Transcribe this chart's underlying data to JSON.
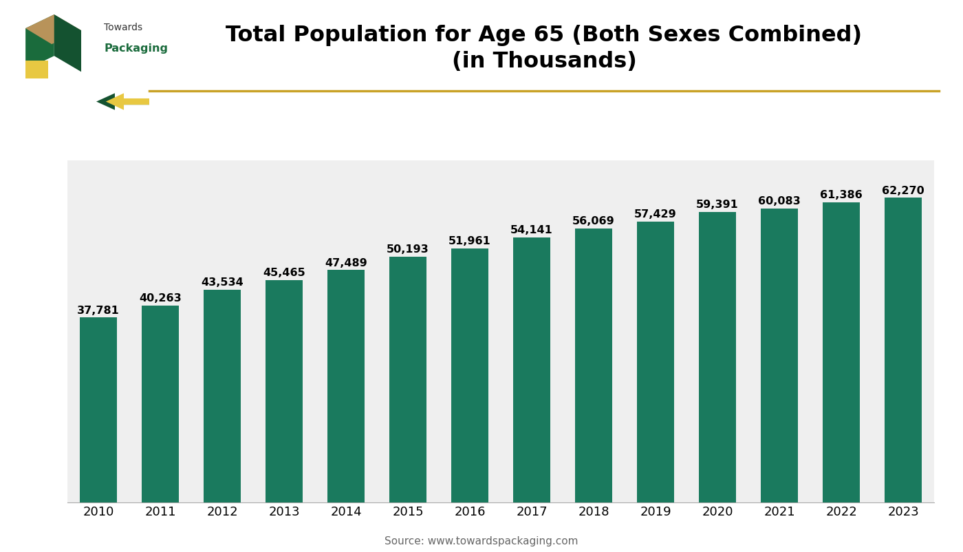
{
  "years": [
    2010,
    2011,
    2012,
    2013,
    2014,
    2015,
    2016,
    2017,
    2018,
    2019,
    2020,
    2021,
    2022,
    2023
  ],
  "values": [
    37781,
    40263,
    43534,
    45465,
    47489,
    50193,
    51961,
    54141,
    56069,
    57429,
    59391,
    60083,
    61386,
    62270
  ],
  "bar_color": "#1a7a5e",
  "title_line1": "Total Population for Age 65 (Both Sexes Combined)",
  "title_line2": "(in Thousands)",
  "source_text": "Source: www.towardspackaging.com",
  "bg_color": "#ffffff",
  "plot_bg_color": "#efefef",
  "bar_label_fontsize": 11.5,
  "title_fontsize": 23,
  "tick_fontsize": 13,
  "source_fontsize": 11,
  "ylim_max": 70000,
  "grid_color": "#cccccc",
  "accent_line_color": "#c9a227",
  "logo_green": "#1a6b3c",
  "logo_brown": "#b8935a",
  "logo_yellow": "#e8c842",
  "logo_dark_green": "#145230"
}
